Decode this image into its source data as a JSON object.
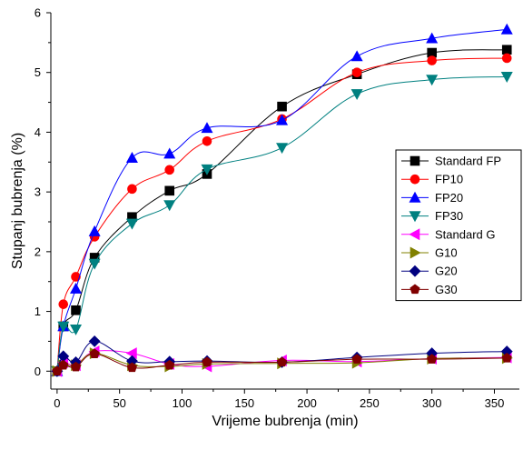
{
  "chart_data": {
    "type": "line",
    "title": "",
    "xlabel": "Vrijeme bubrenja (min)",
    "ylabel": "Stupanj bubrenja (%)",
    "xlim": [
      -5,
      370
    ],
    "ylim": [
      -0.3,
      6
    ],
    "xticks": [
      0,
      50,
      100,
      150,
      200,
      250,
      300,
      350
    ],
    "yticks": [
      0,
      1,
      2,
      3,
      4,
      5,
      6
    ],
    "grid": false,
    "legend_position": "right",
    "x": [
      0,
      5,
      15,
      30,
      60,
      90,
      120,
      180,
      240,
      300,
      360
    ],
    "series": [
      {
        "name": "Standard FP",
        "color": "#000000",
        "marker": "square",
        "values": [
          0,
          0.75,
          1.02,
          1.9,
          2.58,
          3.02,
          3.3,
          4.43,
          4.97,
          5.33,
          5.38
        ]
      },
      {
        "name": "FP10",
        "color": "#ff0000",
        "marker": "circle",
        "values": [
          0,
          1.12,
          1.58,
          2.25,
          3.05,
          3.37,
          3.85,
          4.22,
          5.0,
          5.2,
          5.24
        ]
      },
      {
        "name": "FP20",
        "color": "#0000ff",
        "marker": "triangle-up",
        "values": [
          0,
          0.75,
          1.38,
          2.34,
          3.57,
          3.64,
          4.07,
          4.2,
          5.27,
          5.57,
          5.72
        ]
      },
      {
        "name": "FP30",
        "color": "#008080",
        "marker": "triangle-down",
        "values": [
          0,
          0.75,
          0.7,
          1.8,
          2.47,
          2.78,
          3.38,
          3.74,
          4.64,
          4.88,
          4.93
        ]
      },
      {
        "name": "Standard G",
        "color": "#ff00ff",
        "marker": "triangle-left",
        "values": [
          0,
          0.15,
          0.1,
          0.33,
          0.3,
          0.12,
          0.08,
          0.18,
          0.16,
          0.21,
          0.23
        ]
      },
      {
        "name": "G10",
        "color": "#808000",
        "marker": "triangle-right",
        "values": [
          0,
          0.1,
          0.1,
          0.3,
          0.1,
          0.08,
          0.12,
          0.13,
          0.14,
          0.21,
          0.22
        ]
      },
      {
        "name": "G20",
        "color": "#000080",
        "marker": "diamond",
        "values": [
          0,
          0.25,
          0.15,
          0.5,
          0.17,
          0.16,
          0.17,
          0.15,
          0.23,
          0.3,
          0.33
        ]
      },
      {
        "name": "G30",
        "color": "#800000",
        "marker": "pentagon",
        "values": [
          0,
          0.1,
          0.07,
          0.29,
          0.06,
          0.1,
          0.15,
          0.15,
          0.2,
          0.2,
          0.22
        ]
      }
    ]
  }
}
